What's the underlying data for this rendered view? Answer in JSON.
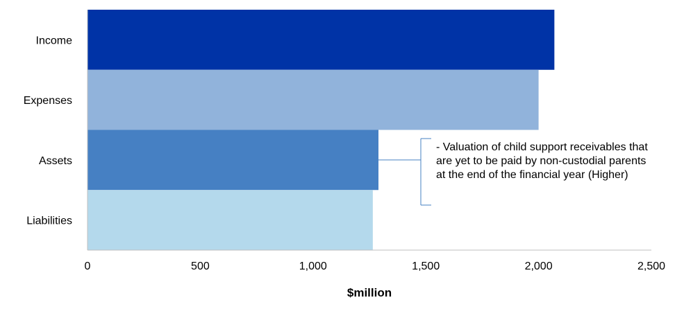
{
  "chart_data": {
    "type": "bar",
    "orientation": "horizontal",
    "categories": [
      "Income",
      "Expenses",
      "Assets",
      "Liabilities"
    ],
    "values": [
      2070,
      2000,
      1290,
      1265
    ],
    "colors": [
      "#0033a6",
      "#91b3db",
      "#4680c3",
      "#b4d9ec"
    ],
    "xlabel": "$million",
    "ylabel": "",
    "xlim": [
      0,
      2500
    ],
    "xticks": [
      0,
      500,
      1000,
      1500,
      2000,
      2500
    ],
    "xtick_labels": [
      "0",
      "500",
      "1,000",
      "1,500",
      "2,000",
      "2,500"
    ],
    "grid": false,
    "annotations": [
      {
        "category": "Assets",
        "text": "- Valuation of child support receivables that are yet to be paid by non-custodial parents at the end of the financial year (Higher)",
        "bracket_color": "#4680c3"
      }
    ]
  }
}
